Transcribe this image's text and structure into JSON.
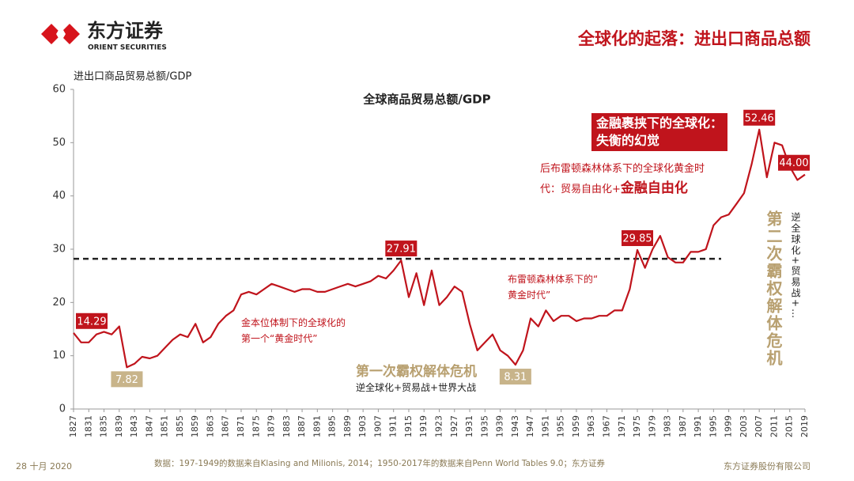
{
  "header": {
    "brand": "东方证券",
    "brand_en": "ORIENT SECURITIES",
    "title": "全球化的起落：进出口商品总额"
  },
  "chart_data": {
    "type": "line",
    "title": "全球商品贸易总额/GDP",
    "y_label": "进出口商品贸易总额/GDP",
    "x": [
      1827,
      1829,
      1831,
      1833,
      1835,
      1837,
      1839,
      1841,
      1843,
      1845,
      1847,
      1849,
      1851,
      1853,
      1855,
      1857,
      1859,
      1861,
      1863,
      1865,
      1867,
      1869,
      1871,
      1873,
      1875,
      1877,
      1879,
      1881,
      1883,
      1885,
      1887,
      1889,
      1891,
      1893,
      1895,
      1897,
      1899,
      1901,
      1903,
      1905,
      1907,
      1909,
      1911,
      1913,
      1915,
      1917,
      1919,
      1921,
      1923,
      1925,
      1927,
      1929,
      1931,
      1933,
      1935,
      1937,
      1939,
      1941,
      1943,
      1945,
      1947,
      1949,
      1951,
      1953,
      1955,
      1957,
      1959,
      1961,
      1963,
      1965,
      1967,
      1969,
      1971,
      1973,
      1975,
      1977,
      1979,
      1981,
      1983,
      1985,
      1987,
      1989,
      1991,
      1993,
      1995,
      1997,
      1999,
      2001,
      2003,
      2005,
      2007,
      2009,
      2011,
      2013,
      2015,
      2017,
      2019
    ],
    "values": [
      14.29,
      12.5,
      12.5,
      14,
      14.5,
      14,
      15.5,
      7.82,
      8.5,
      9.8,
      9.5,
      10,
      11.5,
      13,
      14,
      13.5,
      16,
      12.5,
      13.5,
      16,
      17.5,
      18.5,
      21.5,
      22,
      21.5,
      22.5,
      23.5,
      23,
      22.5,
      22,
      22.5,
      22.5,
      22,
      22,
      22.5,
      23,
      23.5,
      23,
      23.5,
      24,
      25,
      24.5,
      26,
      27.91,
      21,
      25.5,
      19.5,
      26,
      19.5,
      21,
      23,
      22,
      16,
      11,
      12.5,
      14,
      11,
      10,
      8.31,
      11,
      17,
      15.5,
      18.5,
      16.5,
      17.5,
      17.5,
      16.5,
      17,
      17,
      17.5,
      17.5,
      18.5,
      18.5,
      22.5,
      29.85,
      26.5,
      30,
      32.5,
      28.5,
      27.5,
      27.5,
      29.5,
      29.5,
      30,
      34.5,
      36,
      36.5,
      38.5,
      40.5,
      46,
      52.46,
      43.5,
      50,
      49.5,
      45.5,
      43,
      44
    ],
    "value_labels": [
      "14.29",
      null,
      null,
      null,
      null,
      null,
      null,
      "7.82",
      null,
      null,
      null,
      null,
      null,
      null,
      null,
      null,
      null,
      null,
      null,
      null,
      null,
      null,
      null,
      null,
      null,
      null,
      null,
      null,
      null,
      null,
      null,
      null,
      null,
      null,
      null,
      null,
      null,
      null,
      null,
      null,
      null,
      null,
      null,
      "27.91",
      null,
      null,
      null,
      null,
      null,
      null,
      null,
      null,
      null,
      null,
      null,
      null,
      null,
      null,
      "8.31",
      null,
      null,
      null,
      null,
      null,
      null,
      null,
      null,
      null,
      null,
      null,
      null,
      null,
      null,
      null,
      "29.85",
      null,
      null,
      null,
      null,
      null,
      null,
      null,
      null,
      null,
      null,
      null,
      null,
      null,
      null,
      null,
      "52.46",
      null,
      null,
      null,
      null,
      null,
      "44.00"
    ],
    "color": "#c0141c",
    "label_colors": {
      "high": "#c0141c",
      "low": "#c8b48a"
    },
    "xlim": [
      1827,
      2019
    ],
    "xticks": [
      1827,
      1831,
      1835,
      1839,
      1843,
      1847,
      1851,
      1855,
      1859,
      1863,
      1867,
      1871,
      1875,
      1879,
      1883,
      1887,
      1891,
      1895,
      1899,
      1903,
      1907,
      1911,
      1915,
      1919,
      1923,
      1927,
      1931,
      1935,
      1939,
      1943,
      1947,
      1951,
      1955,
      1959,
      1963,
      1967,
      1971,
      1975,
      1979,
      1983,
      1987,
      1991,
      1995,
      1999,
      2003,
      2007,
      2011,
      2015,
      2019
    ],
    "ylim": [
      0,
      60
    ],
    "yticks": [
      0,
      10,
      20,
      30,
      40,
      50,
      60
    ],
    "hline": {
      "value": 28.2,
      "x": [
        1827,
        1997
      ]
    },
    "annotations": {
      "finance_box": [
        "金融裹挟下的全球化：",
        "失衡的幻觉"
      ],
      "post_bw": [
        "后布雷顿森林体系下的全球化黄金时",
        "代：贸易自由化+",
        "金融自由化"
      ],
      "bw": [
        "布雷顿森林体系下的“",
        "黄金时代”"
      ],
      "gold": [
        "金本位体制下的全球化的",
        "第一个“黄金时代”"
      ],
      "crisis1": "第一次霸权解体危机",
      "crisis1_sub": "逆全球化+贸易战+世界大战",
      "crisis2": "第二次霸权解体危机",
      "crisis2_sub": "逆全球化+贸易战+…"
    }
  },
  "footer": {
    "date": "28 十月 2020",
    "source": "数据：197-1949的数据来自Klasing and Milionis, 2014；1950-2017年的数据来自Penn World Tables 9.0；东方证券",
    "company": "东方证券股份有限公司"
  }
}
